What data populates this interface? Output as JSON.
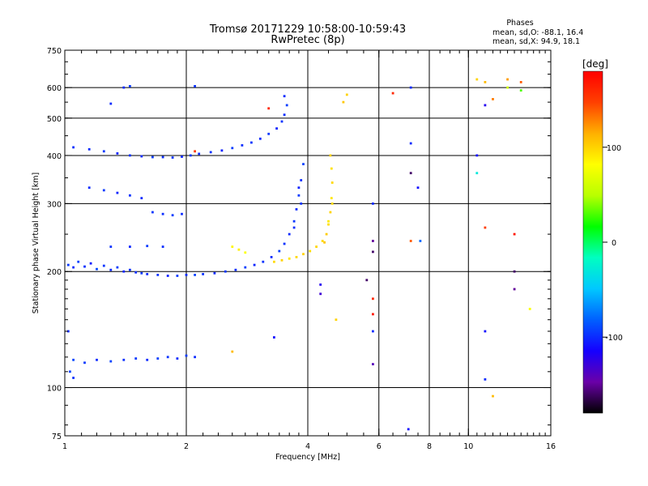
{
  "chart_data": {
    "type": "scatter",
    "title": "Tromsø 20171229 10:58:00-10:59:43",
    "subtitle": "RwPretec (8p)",
    "xlabel": "Frequency [MHz]",
    "ylabel": "Stationary phase Virtual Height [km]",
    "x_scale": "log",
    "y_scale": "log",
    "xlim": [
      1,
      16
    ],
    "ylim": [
      75,
      750
    ],
    "x_ticks": [
      1,
      2,
      4,
      6,
      8,
      10,
      16
    ],
    "y_ticks": [
      75,
      100,
      200,
      300,
      400,
      500,
      600,
      750
    ],
    "x_grid": [
      2,
      4,
      6,
      8,
      10
    ],
    "y_grid": [
      100,
      200,
      300,
      400,
      500,
      600
    ],
    "grid": true,
    "legend": {
      "title": "Phases",
      "lines": [
        "mean, sd,O: -88.1, 16.4",
        "mean, sd,X:  94.9, 18.1"
      ],
      "placement": "top-right"
    },
    "colorbar": {
      "label": "[deg]",
      "min": -180,
      "max": 180,
      "ticks": [
        -100,
        0,
        100
      ],
      "colors": [
        "#000000",
        "#6a00a8",
        "#1500ff",
        "#0060ff",
        "#00c8ff",
        "#00ffc0",
        "#00ff00",
        "#b8ff00",
        "#ffff00",
        "#ffb000",
        "#ff4000",
        "#ff0000"
      ]
    },
    "series": [
      {
        "points": [
          [
            1.02,
            208,
            -95
          ],
          [
            1.05,
            205,
            -100
          ],
          [
            1.08,
            212,
            -92
          ],
          [
            1.12,
            206,
            -98
          ],
          [
            1.16,
            210,
            -105
          ],
          [
            1.2,
            203,
            -90
          ],
          [
            1.25,
            207,
            -96
          ],
          [
            1.3,
            202,
            -100
          ],
          [
            1.35,
            205,
            -94
          ],
          [
            1.4,
            200,
            -102
          ],
          [
            1.45,
            202,
            -97
          ],
          [
            1.5,
            199,
            -99
          ],
          [
            1.55,
            198,
            -95
          ],
          [
            1.6,
            197,
            -100
          ],
          [
            1.7,
            196,
            -97
          ],
          [
            1.8,
            195,
            -103
          ],
          [
            1.9,
            195,
            -95
          ],
          [
            2.0,
            196,
            -100
          ],
          [
            2.1,
            196,
            -92
          ],
          [
            2.2,
            197,
            -98
          ],
          [
            2.35,
            198,
            -100
          ],
          [
            2.5,
            200,
            -96
          ],
          [
            2.65,
            202,
            -99
          ],
          [
            2.8,
            205,
            -94
          ],
          [
            2.95,
            208,
            -102
          ],
          [
            3.1,
            212,
            -97
          ],
          [
            3.25,
            218,
            -100
          ],
          [
            3.4,
            226,
            -93
          ],
          [
            3.5,
            236,
            -98
          ],
          [
            3.6,
            250,
            -101
          ],
          [
            3.7,
            270,
            -96
          ],
          [
            3.75,
            290,
            -100
          ],
          [
            3.8,
            315,
            -95
          ],
          [
            3.85,
            345,
            -99
          ],
          [
            3.9,
            380,
            -92
          ],
          [
            3.85,
            300,
            -97
          ],
          [
            3.7,
            260,
            -100
          ],
          [
            3.8,
            330,
            -103
          ]
        ]
      },
      {
        "points": [
          [
            3.3,
            212,
            97
          ],
          [
            3.45,
            214,
            100
          ],
          [
            3.6,
            216,
            92
          ],
          [
            3.75,
            218,
            98
          ],
          [
            3.9,
            222,
            101
          ],
          [
            4.05,
            226,
            95
          ],
          [
            4.2,
            232,
            99
          ],
          [
            4.35,
            240,
            97
          ],
          [
            4.45,
            250,
            103
          ],
          [
            4.5,
            265,
            95
          ],
          [
            4.55,
            285,
            100
          ],
          [
            4.58,
            310,
            92
          ],
          [
            4.6,
            340,
            98
          ],
          [
            4.58,
            370,
            94
          ],
          [
            4.55,
            400,
            100
          ],
          [
            4.4,
            238,
            105
          ],
          [
            4.5,
            270,
            90
          ],
          [
            4.6,
            300,
            96
          ],
          [
            2.6,
            232,
            85
          ],
          [
            2.7,
            228,
            88
          ],
          [
            2.8,
            224,
            80
          ]
        ]
      },
      {
        "points": [
          [
            1.05,
            420,
            -98
          ],
          [
            1.15,
            415,
            -100
          ],
          [
            1.25,
            410,
            -95
          ],
          [
            1.35,
            405,
            -102
          ],
          [
            1.45,
            400,
            -97
          ],
          [
            1.55,
            398,
            -100
          ],
          [
            1.65,
            396,
            -93
          ],
          [
            1.75,
            396,
            -99
          ],
          [
            1.85,
            395,
            -96
          ],
          [
            1.95,
            397,
            -101
          ],
          [
            2.05,
            400,
            -95
          ],
          [
            2.15,
            404,
            -100
          ],
          [
            2.3,
            408,
            -97
          ],
          [
            2.45,
            412,
            -103
          ],
          [
            2.6,
            418,
            -94
          ],
          [
            2.75,
            425,
            -99
          ],
          [
            2.9,
            432,
            -96
          ],
          [
            3.05,
            442,
            -100
          ],
          [
            3.2,
            455,
            -95
          ],
          [
            3.35,
            470,
            -102
          ],
          [
            3.45,
            490,
            -97
          ],
          [
            3.5,
            510,
            -99
          ],
          [
            3.55,
            540,
            -94
          ],
          [
            3.5,
            570,
            -100
          ]
        ]
      },
      {
        "points": [
          [
            1.05,
            118,
            -90
          ],
          [
            1.12,
            116,
            -95
          ],
          [
            1.2,
            118,
            -100
          ],
          [
            1.3,
            117,
            -92
          ],
          [
            1.4,
            118,
            -98
          ],
          [
            1.5,
            119,
            -95
          ],
          [
            1.6,
            118,
            -100
          ],
          [
            1.7,
            119,
            -93
          ],
          [
            1.8,
            120,
            -97
          ],
          [
            1.9,
            119,
            -99
          ],
          [
            2.0,
            121,
            -95
          ],
          [
            2.1,
            120,
            -100
          ],
          [
            1.03,
            110,
            -92
          ],
          [
            1.05,
            106,
            -97
          ],
          [
            1.02,
            140,
            -100
          ]
        ]
      },
      {
        "points": [
          [
            1.15,
            330,
            -100
          ],
          [
            1.25,
            325,
            -95
          ],
          [
            1.35,
            320,
            -102
          ],
          [
            1.45,
            315,
            -97
          ],
          [
            1.55,
            310,
            -100
          ],
          [
            1.65,
            285,
            -96
          ],
          [
            1.75,
            282,
            -99
          ],
          [
            1.85,
            280,
            -94
          ],
          [
            1.95,
            282,
            -100
          ],
          [
            1.3,
            232,
            -97
          ],
          [
            1.45,
            232,
            -101
          ],
          [
            1.6,
            233,
            -95
          ],
          [
            1.75,
            232,
            -99
          ],
          [
            1.4,
            600,
            -100
          ],
          [
            1.45,
            605,
            -95
          ],
          [
            2.1,
            605,
            -98
          ],
          [
            1.3,
            545,
            -100
          ]
        ]
      },
      {
        "points": [
          [
            5.8,
            300,
            -100
          ],
          [
            5.8,
            240,
            -150
          ],
          [
            5.8,
            225,
            -160
          ],
          [
            5.6,
            190,
            -160
          ],
          [
            5.8,
            170,
            160
          ],
          [
            5.8,
            155,
            170
          ],
          [
            5.8,
            140,
            -100
          ],
          [
            5.8,
            115,
            -140
          ],
          [
            7.2,
            600,
            -100
          ],
          [
            7.2,
            430,
            -100
          ],
          [
            7.2,
            360,
            -160
          ],
          [
            7.5,
            330,
            -110
          ],
          [
            7.6,
            240,
            -80
          ],
          [
            7.2,
            240,
            140
          ],
          [
            6.5,
            580,
            160
          ],
          [
            10.5,
            630,
            100
          ],
          [
            11.0,
            620,
            110
          ],
          [
            12.5,
            630,
            120
          ],
          [
            13.5,
            620,
            140
          ],
          [
            11,
            540,
            -120
          ],
          [
            11.5,
            560,
            130
          ],
          [
            12.5,
            600,
            60
          ],
          [
            13.5,
            590,
            30
          ],
          [
            10.5,
            400,
            -110
          ],
          [
            10.5,
            360,
            -30
          ],
          [
            11.0,
            260,
            150
          ],
          [
            13,
            250,
            170
          ],
          [
            13,
            200,
            -160
          ],
          [
            13,
            180,
            -150
          ],
          [
            11,
            140,
            -110
          ],
          [
            11,
            105,
            -100
          ],
          [
            14.2,
            160,
            80
          ],
          [
            11.5,
            95,
            110
          ],
          [
            7.1,
            78,
            -110
          ],
          [
            5.0,
            575,
            100
          ],
          [
            4.9,
            550,
            105
          ],
          [
            3.2,
            530,
            160
          ],
          [
            4.3,
            185,
            -120
          ],
          [
            4.3,
            175,
            -130
          ],
          [
            4.7,
            150,
            100
          ],
          [
            3.3,
            135,
            -110
          ],
          [
            2.6,
            124,
            110
          ],
          [
            2.1,
            410,
            150
          ]
        ]
      }
    ]
  }
}
